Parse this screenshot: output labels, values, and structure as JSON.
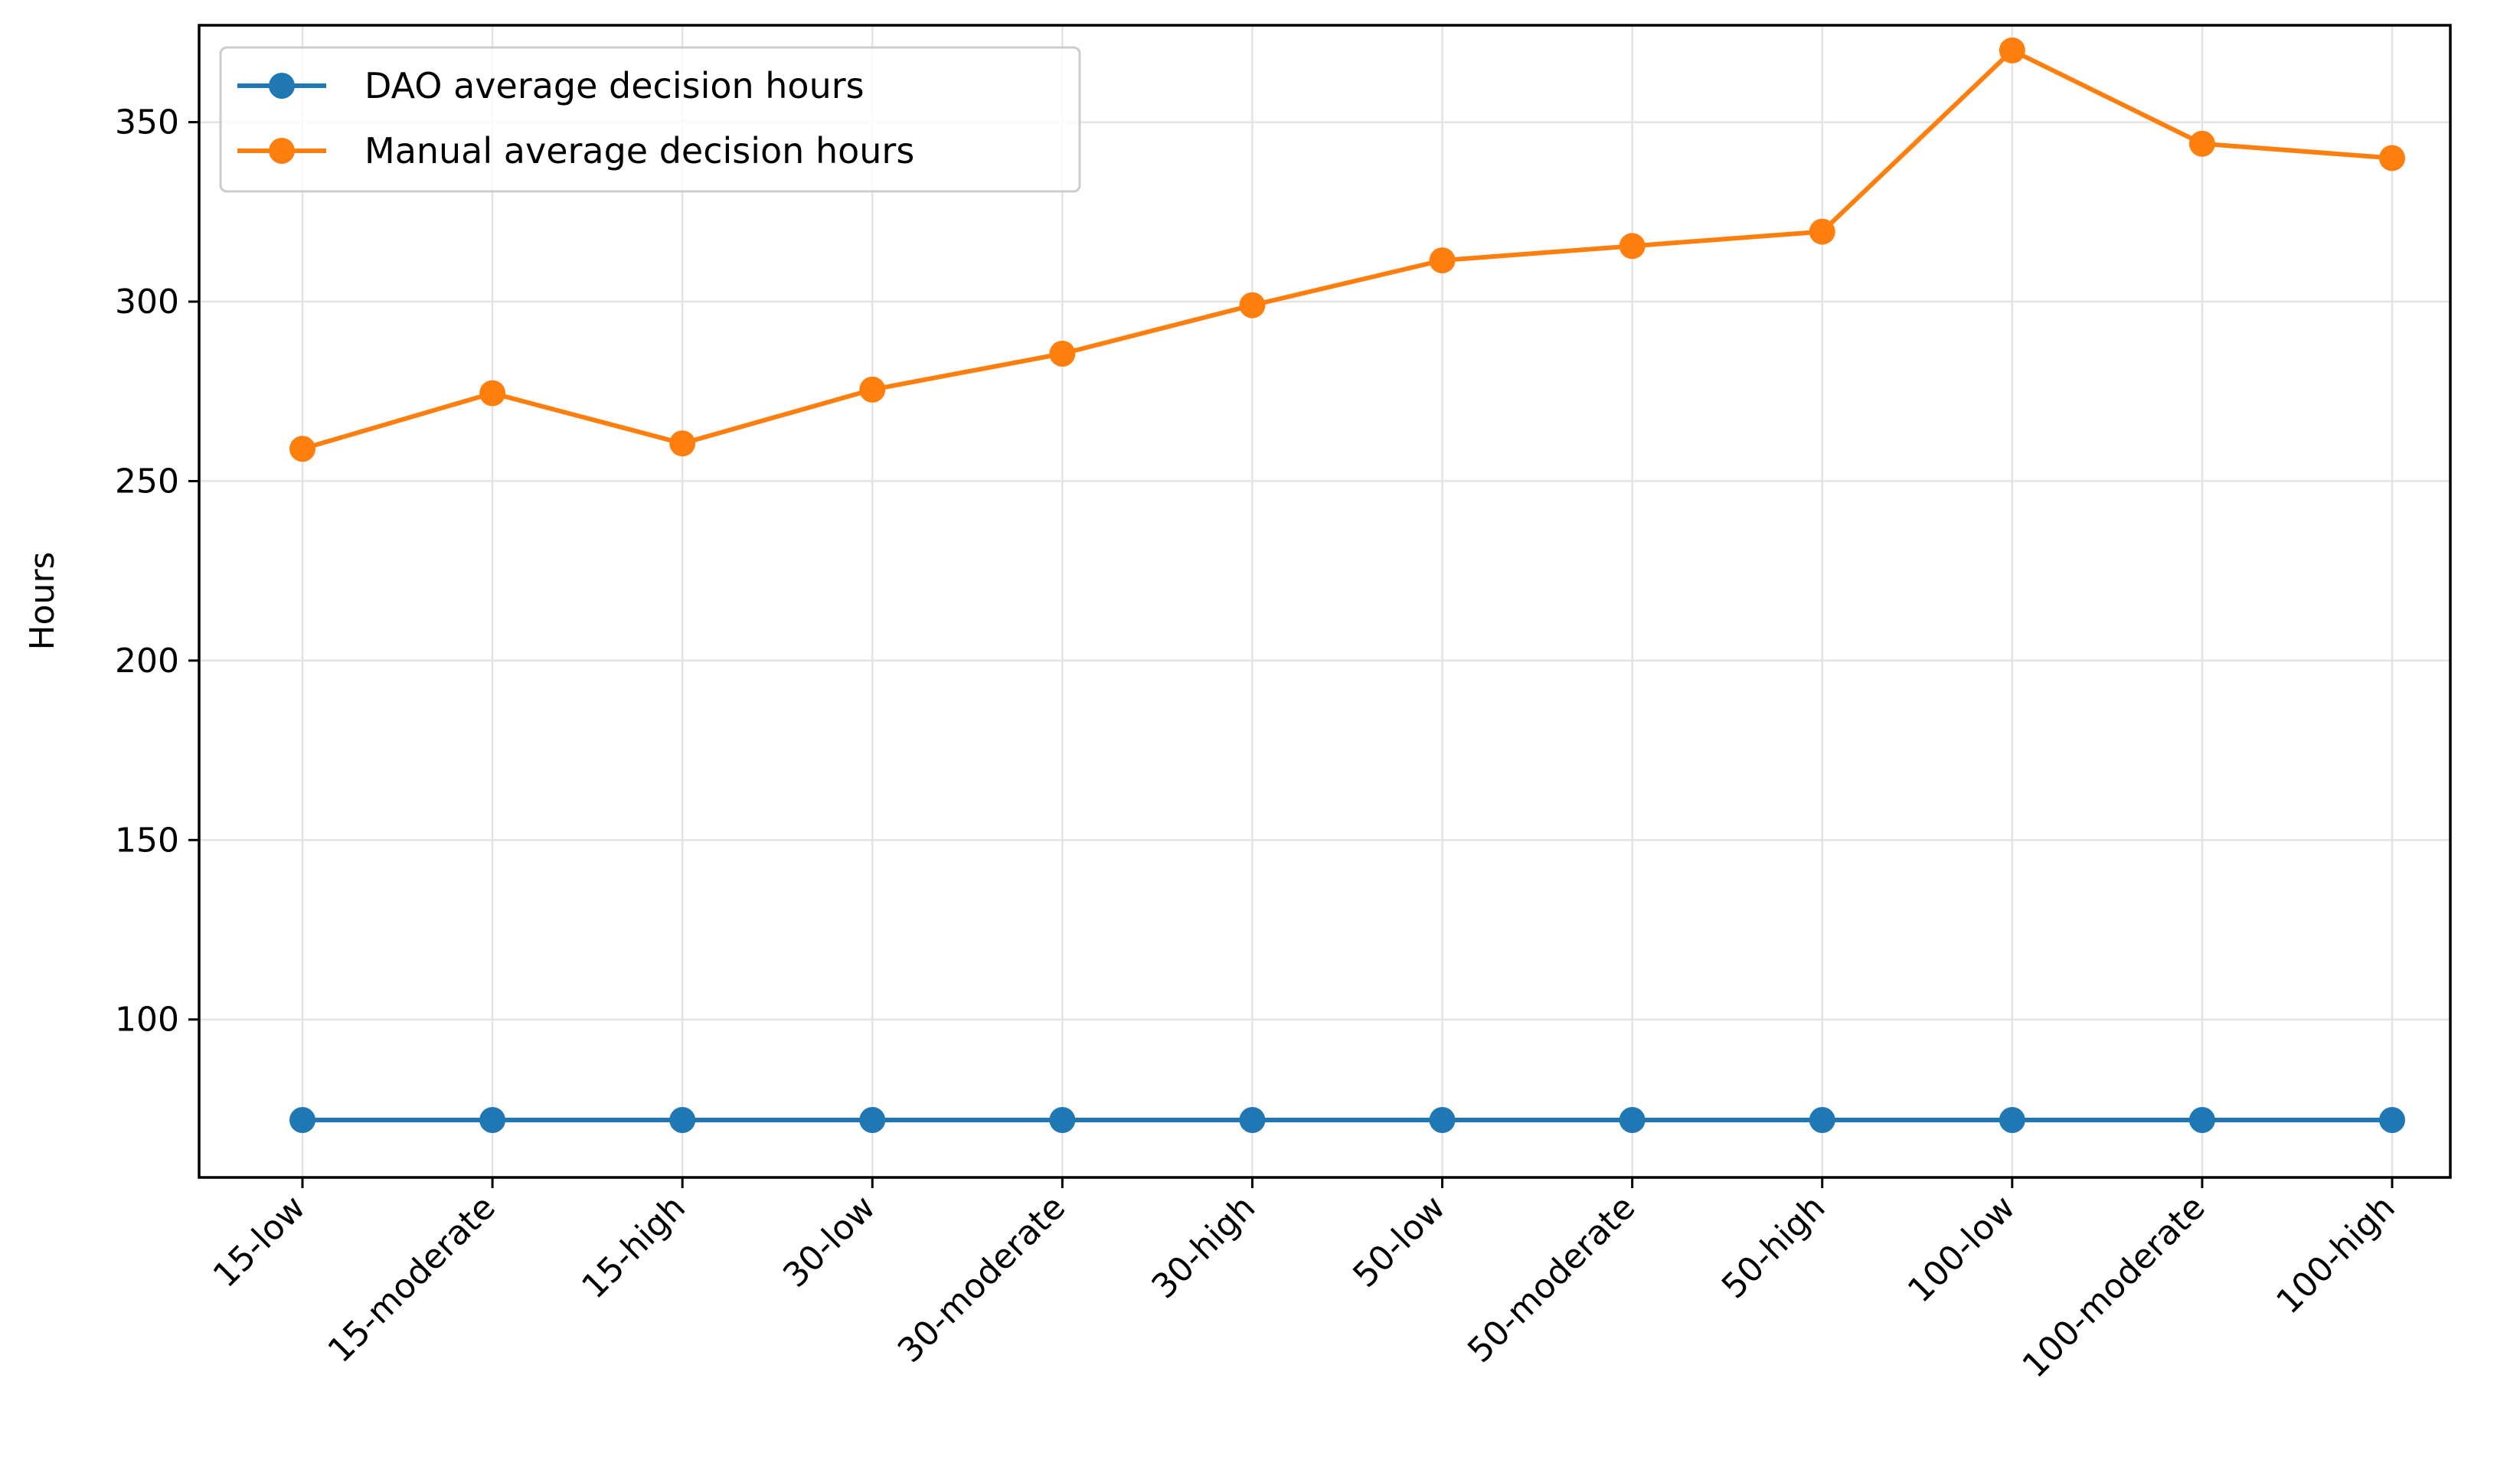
{
  "chart_data": {
    "type": "line",
    "title": "",
    "xlabel": "",
    "ylabel": "Hours",
    "ylim": [
      56,
      377
    ],
    "yticks": [
      100,
      150,
      200,
      250,
      300,
      350
    ],
    "categories": [
      "15-low",
      "15-moderate",
      "15-high",
      "30-low",
      "30-moderate",
      "30-high",
      "50-low",
      "50-moderate",
      "50-high",
      "100-low",
      "100-moderate",
      "100-high"
    ],
    "series": [
      {
        "name": "DAO average decision hours",
        "color": "#1f77b4",
        "values": [
          72,
          72,
          72,
          72,
          72,
          72,
          72,
          72,
          72,
          72,
          72,
          72
        ]
      },
      {
        "name": "Manual average decision hours",
        "color": "#ff7f0e",
        "values": [
          259,
          274.5,
          260.5,
          275.5,
          285.5,
          299,
          311.5,
          315.5,
          319.5,
          370,
          344,
          340
        ]
      }
    ],
    "grid": true,
    "legend_position": "top-left",
    "marker": "circle"
  }
}
